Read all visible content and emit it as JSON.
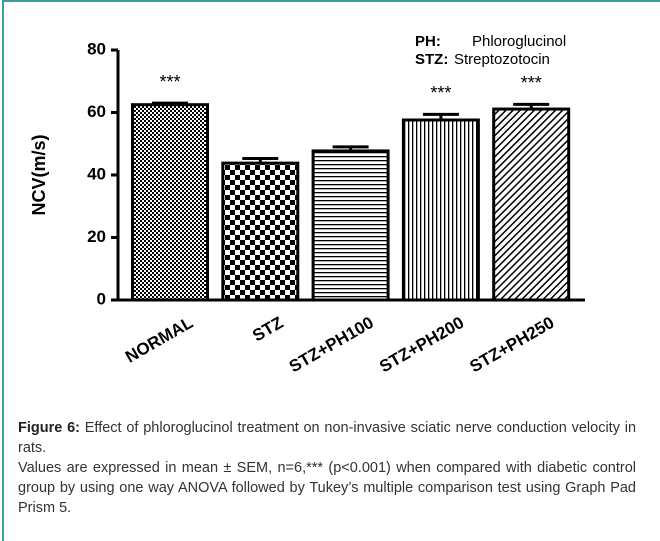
{
  "chart_data": {
    "type": "bar",
    "ylabel": "NCV(m/s)",
    "categories": [
      "NORMAL",
      "STZ",
      "STZ+PH100",
      "STZ+PH200",
      "STZ+PH250"
    ],
    "values": [
      62.5,
      43.8,
      47.7,
      57.6,
      61.1
    ],
    "errors": [
      0.5,
      1.5,
      1.3,
      1.8,
      1.5
    ],
    "significance": [
      "***",
      null,
      null,
      "***",
      "***"
    ],
    "patterns": [
      "dots",
      "checker",
      "horizontal",
      "vertical",
      "diagonal"
    ],
    "color": "#000000",
    "ylim": [
      0,
      80
    ],
    "yticks": [
      0,
      20,
      40,
      60,
      80
    ],
    "notes": [
      {
        "abbr": "PH:",
        "text": "Phloroglucinol"
      },
      {
        "abbr": "STZ:",
        "text": "Streptozotocin"
      }
    ]
  },
  "caption": {
    "label": "Figure 6:",
    "title": "Effect of phloroglucinol treatment on non-invasive sciatic nerve conduction velocity in rats.",
    "notes": "Values are expressed in mean ± SEM, n=6,*** (p<0.001) when compared with diabetic control group by using one way ANOVA followed by Tukey’s multiple comparison test using Graph Pad Prism 5."
  }
}
